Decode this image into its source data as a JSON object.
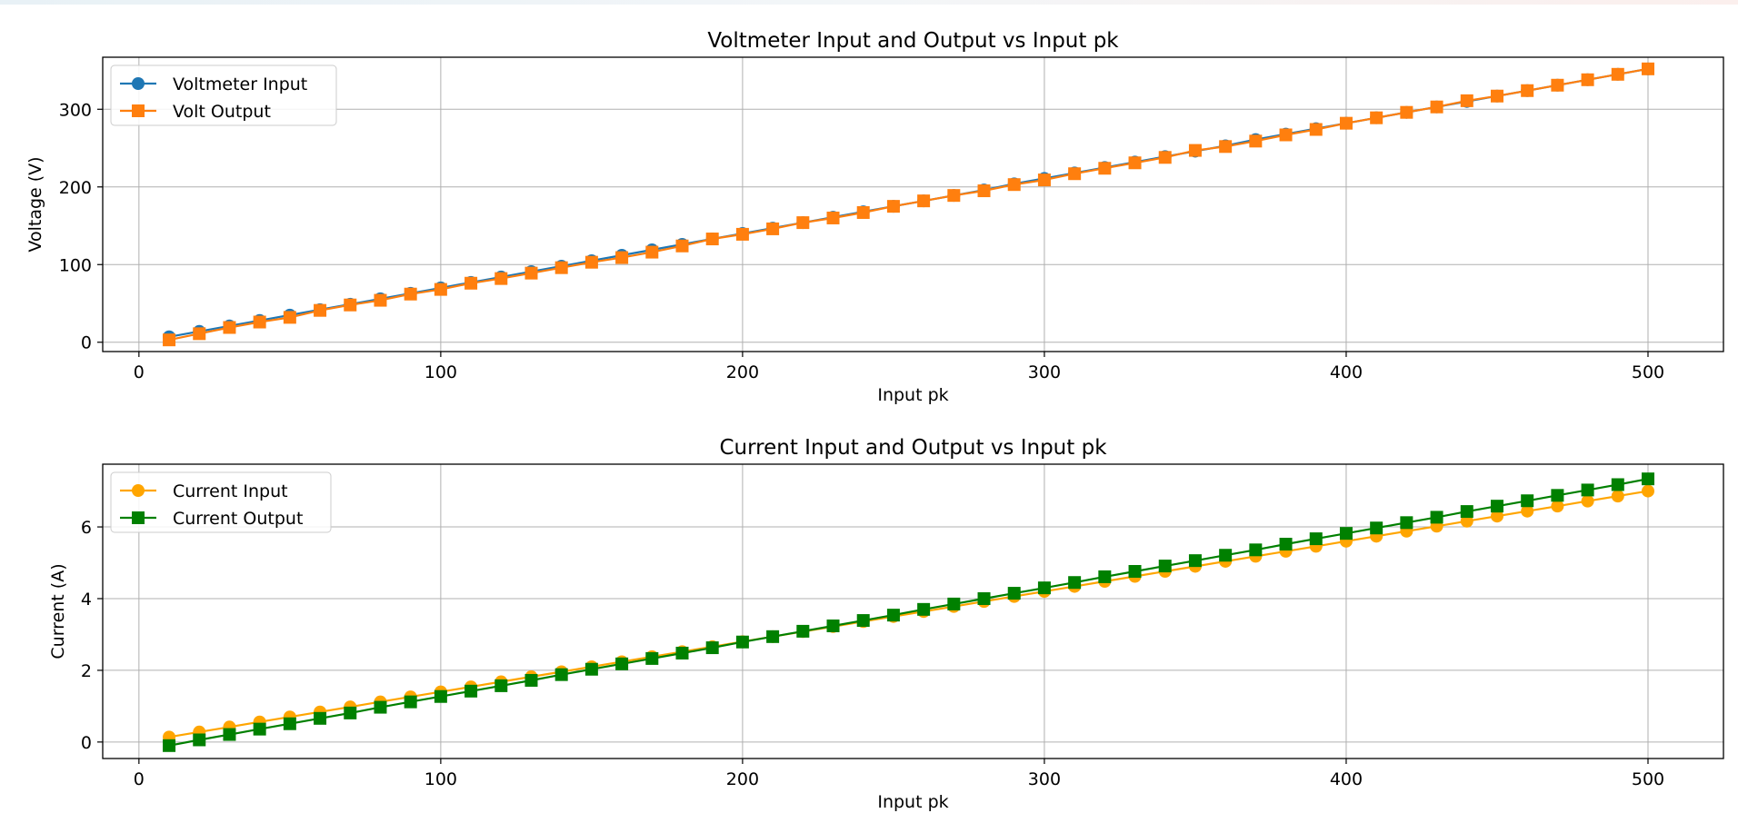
{
  "chart_data": [
    {
      "type": "line",
      "title": "Voltmeter Input and Output vs Input pk",
      "xlabel": "Input pk",
      "ylabel": "Voltage (V)",
      "xlim": [
        -12,
        525
      ],
      "ylim": [
        -12,
        367
      ],
      "xticks": [
        0,
        100,
        200,
        300,
        400,
        500
      ],
      "yticks": [
        0,
        100,
        200,
        300
      ],
      "grid": true,
      "legend_position": "upper-left",
      "x": [
        10,
        20,
        30,
        40,
        50,
        60,
        70,
        80,
        90,
        100,
        110,
        120,
        130,
        140,
        150,
        160,
        170,
        180,
        190,
        200,
        210,
        220,
        230,
        240,
        250,
        260,
        270,
        280,
        290,
        300,
        310,
        320,
        330,
        340,
        350,
        360,
        370,
        380,
        390,
        400,
        410,
        420,
        430,
        440,
        450,
        460,
        470,
        480,
        490,
        500
      ],
      "series": [
        {
          "name": "Voltmeter Input",
          "color": "#1f77b4",
          "marker": "circle",
          "values": [
            7,
            14,
            21,
            28,
            35,
            42,
            49,
            56,
            63,
            70,
            77,
            84,
            91,
            98,
            105,
            112,
            119,
            126,
            133,
            140,
            147,
            154,
            161,
            168,
            175,
            182,
            189,
            196,
            204,
            211,
            218,
            225,
            232,
            239,
            246,
            253,
            261,
            268,
            275,
            282,
            289,
            296,
            303,
            310,
            317,
            324,
            331,
            338,
            345,
            352
          ]
        },
        {
          "name": "Volt Output",
          "color": "#ff7f0e",
          "marker": "square",
          "values": [
            3,
            11,
            19,
            26,
            32,
            41,
            48,
            54,
            62,
            68,
            76,
            82,
            89,
            96,
            103,
            109,
            116,
            124,
            133,
            139,
            146,
            154,
            160,
            167,
            175,
            182,
            189,
            195,
            203,
            209,
            217,
            224,
            231,
            238,
            247,
            252,
            259,
            267,
            274,
            282,
            289,
            296,
            303,
            311,
            317,
            324,
            331,
            338,
            345,
            352
          ]
        }
      ]
    },
    {
      "type": "line",
      "title": "Current Input and Output vs Input pk",
      "xlabel": "Input pk",
      "ylabel": "Current (A)",
      "xlim": [
        -12,
        525
      ],
      "ylim": [
        -0.46,
        7.75
      ],
      "xticks": [
        0,
        100,
        200,
        300,
        400,
        500
      ],
      "yticks": [
        0,
        2,
        4,
        6
      ],
      "grid": true,
      "legend_position": "upper-left",
      "x": [
        10,
        20,
        30,
        40,
        50,
        60,
        70,
        80,
        90,
        100,
        110,
        120,
        130,
        140,
        150,
        160,
        170,
        180,
        190,
        200,
        210,
        220,
        230,
        240,
        250,
        260,
        270,
        280,
        290,
        300,
        310,
        320,
        330,
        340,
        350,
        360,
        370,
        380,
        390,
        400,
        410,
        420,
        430,
        440,
        450,
        460,
        470,
        480,
        490,
        500
      ],
      "series": [
        {
          "name": "Current Input",
          "color": "#ffa500",
          "marker": "circle",
          "values": [
            0.14,
            0.28,
            0.42,
            0.56,
            0.7,
            0.84,
            0.98,
            1.12,
            1.26,
            1.4,
            1.54,
            1.68,
            1.82,
            1.96,
            2.1,
            2.24,
            2.38,
            2.52,
            2.66,
            2.8,
            2.94,
            3.08,
            3.22,
            3.36,
            3.5,
            3.64,
            3.78,
            3.92,
            4.06,
            4.2,
            4.34,
            4.48,
            4.62,
            4.76,
            4.9,
            5.04,
            5.18,
            5.32,
            5.46,
            5.6,
            5.74,
            5.88,
            6.02,
            6.16,
            6.3,
            6.44,
            6.58,
            6.72,
            6.86,
            7.0
          ]
        },
        {
          "name": "Current Output",
          "color": "#008000",
          "marker": "square",
          "values": [
            -0.1,
            0.06,
            0.21,
            0.36,
            0.51,
            0.66,
            0.81,
            0.97,
            1.12,
            1.27,
            1.42,
            1.57,
            1.72,
            1.88,
            2.03,
            2.18,
            2.33,
            2.48,
            2.63,
            2.79,
            2.94,
            3.09,
            3.24,
            3.39,
            3.54,
            3.7,
            3.85,
            4.0,
            4.15,
            4.3,
            4.45,
            4.61,
            4.76,
            4.91,
            5.06,
            5.21,
            5.36,
            5.52,
            5.67,
            5.82,
            5.97,
            6.12,
            6.27,
            6.43,
            6.58,
            6.73,
            6.88,
            7.03,
            7.18,
            7.34
          ]
        }
      ]
    }
  ]
}
